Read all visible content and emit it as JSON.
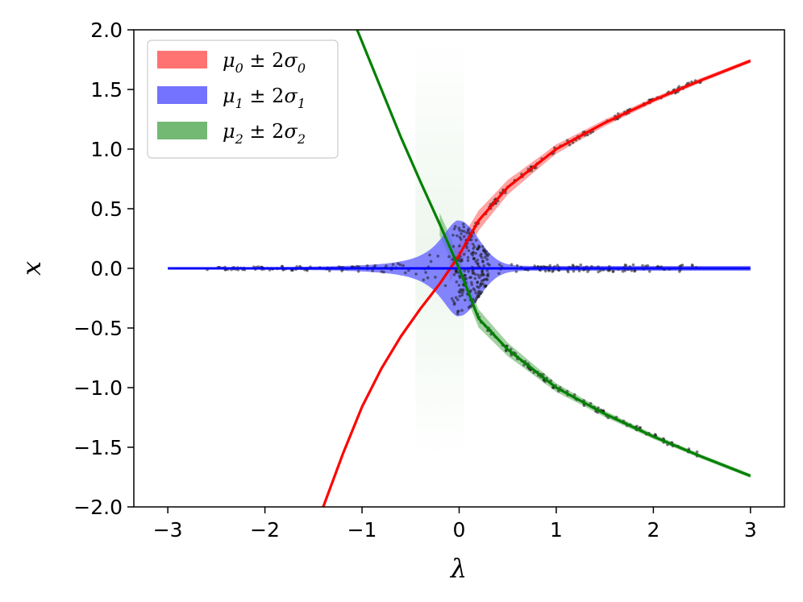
{
  "chart_data": {
    "type": "line",
    "title": "",
    "xlabel": "λ",
    "ylabel": "x",
    "xlim": [
      -3.35,
      3.35
    ],
    "ylim": [
      -2.0,
      2.0
    ],
    "x_ticks": [
      -3,
      -2,
      -1,
      0,
      1,
      2,
      3
    ],
    "y_ticks": [
      -2.0,
      -1.5,
      -1.0,
      -0.5,
      0.0,
      0.5,
      1.0,
      1.5,
      2.0
    ],
    "x_tick_labels": [
      "−3",
      "−2",
      "−1",
      "0",
      "1",
      "2",
      "3"
    ],
    "y_tick_labels": [
      "−2.0",
      "−1.5",
      "−1.0",
      "−0.5",
      "0.0",
      "0.5",
      "1.0",
      "1.5",
      "2.0"
    ],
    "grid": false,
    "legend_position": "top-left",
    "series": [
      {
        "name": "μ₀ ± 2σ₀",
        "legend_main": "μ",
        "legend_sub": "0",
        "legend_op": " ± 2",
        "legend_sigma": "σ",
        "legend_sigma_sub": "0",
        "color": "#ff0000",
        "band_color": "#ff6666",
        "x": [
          -1.4,
          -1.2,
          -1.0,
          -0.8,
          -0.6,
          -0.4,
          -0.2,
          0.0,
          0.2,
          0.5,
          1.0,
          1.5,
          2.0,
          2.5,
          3.0
        ],
        "y": [
          -2.0,
          -1.56,
          -1.16,
          -0.84,
          -0.57,
          -0.34,
          -0.13,
          0.11,
          0.4,
          0.68,
          1.0,
          1.22,
          1.41,
          1.58,
          1.74
        ]
      },
      {
        "name": "μ₁ ± 2σ₁",
        "legend_main": "μ",
        "legend_sub": "1",
        "legend_op": " ± 2",
        "legend_sigma": "σ",
        "legend_sigma_sub": "1",
        "color": "#0000ff",
        "band_color": "#6666ff",
        "x": [
          -3.0,
          -2.0,
          -1.0,
          -0.5,
          0.0,
          0.5,
          1.0,
          2.0,
          3.0
        ],
        "y": [
          0.0,
          0.0,
          0.0,
          0.0,
          0.0,
          0.0,
          0.0,
          0.0,
          0.0
        ]
      },
      {
        "name": "μ₂ ± 2σ₂",
        "legend_main": "μ",
        "legend_sub": "2",
        "legend_op": " ± 2",
        "legend_sigma": "σ",
        "legend_sigma_sub": "2",
        "color": "#008000",
        "band_color": "#66b266",
        "x": [
          -1.05,
          -0.8,
          -0.6,
          -0.4,
          -0.2,
          0.0,
          0.2,
          0.5,
          1.0,
          1.5,
          2.0,
          2.5,
          3.0
        ],
        "y": [
          2.0,
          1.5,
          1.1,
          0.73,
          0.37,
          0.0,
          -0.42,
          -0.68,
          -1.0,
          -1.22,
          -1.41,
          -1.58,
          -1.74
        ]
      }
    ]
  }
}
